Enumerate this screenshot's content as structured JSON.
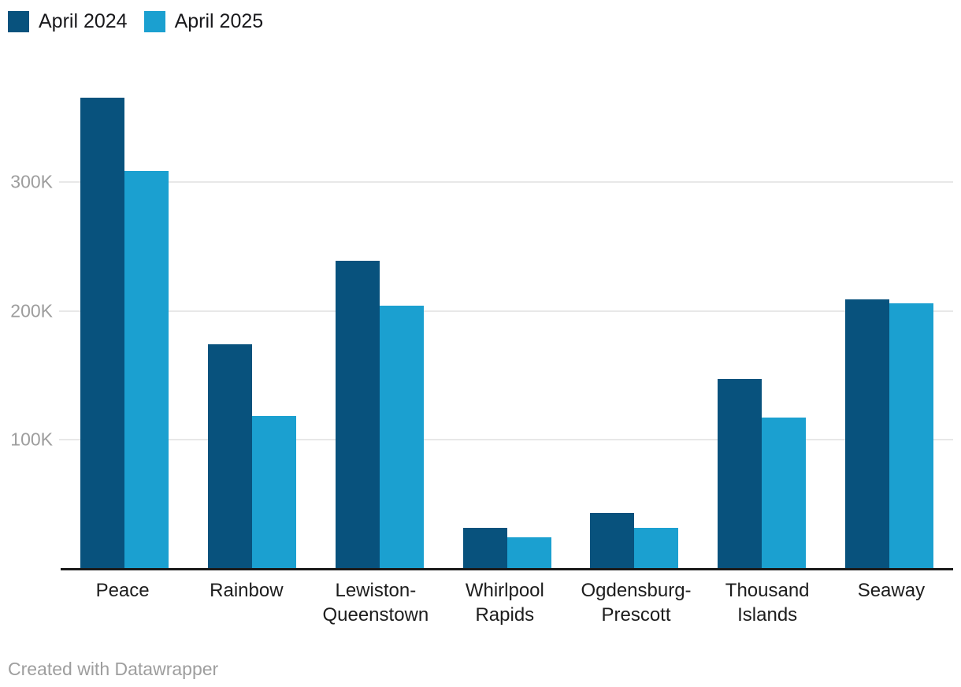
{
  "chart_data": {
    "type": "bar",
    "title": "",
    "xlabel": "",
    "ylabel": "",
    "categories": [
      "Peace",
      "Rainbow",
      "Lewiston-Queenstown",
      "Whirlpool Rapids",
      "Ogdensburg-Prescott",
      "Thousand Islands",
      "Seaway"
    ],
    "series": [
      {
        "name": "April 2024",
        "color": "#08527d",
        "values": [
          366000,
          174000,
          239000,
          31000,
          43000,
          147000,
          209000
        ]
      },
      {
        "name": "April 2025",
        "color": "#1ba0d0",
        "values": [
          309000,
          118000,
          204000,
          24000,
          31000,
          117000,
          206000
        ]
      }
    ],
    "ylim": [
      0,
      400000
    ],
    "yticks": [
      {
        "value": 100000,
        "label": "100K"
      },
      {
        "value": 200000,
        "label": "200K"
      },
      {
        "value": 300000,
        "label": "300K"
      }
    ],
    "grid": true,
    "legend_position": "top-left"
  },
  "colors": {
    "series_dark": "#08527d",
    "series_light": "#1ba0d0",
    "gridline": "#e8e8e8",
    "axis_line": "#1a1a1a",
    "tick_text": "#9d9d9d",
    "category_text": "#1d1d1d",
    "footer_text": "#9e9e9e"
  },
  "footer": {
    "credit": "Created with Datawrapper"
  }
}
